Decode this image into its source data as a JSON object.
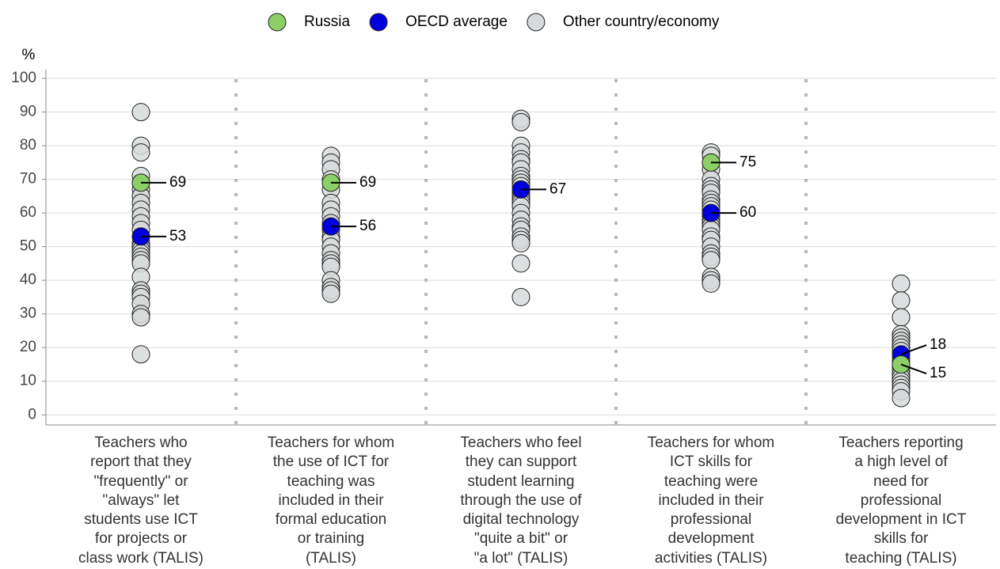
{
  "chart_data": {
    "type": "strip",
    "y_label": "%",
    "categories": [
      "Teachers who\nreport that they\n\"frequently\" or\n\"always\" let\nstudents use ICT\nfor projects or\nclass work (TALIS)",
      "Teachers for whom\nthe use of ICT for\nteaching was\nincluded in their\nformal education\nor training\n(TALIS)",
      "Teachers who feel\nthey can support\nstudent learning\nthrough the use of\ndigital technology\n\"quite a bit\" or\n\"a lot\" (TALIS)",
      "Teachers for whom\nICT skills for\nteaching were\nincluded in their\nprofessional\ndevelopment\nactivities (TALIS)",
      "Teachers reporting\na high level of\nneed for\nprofessional\ndevelopment in ICT\nskills for\nteaching (TALIS)"
    ],
    "series": [
      {
        "name": "Other country/economy",
        "color": "#d7dadc",
        "values": [
          [
            90,
            80,
            78,
            71,
            69,
            67,
            65,
            63,
            61,
            59,
            57,
            55,
            53,
            51,
            50,
            49,
            48,
            47,
            46,
            45,
            41,
            37,
            36,
            35,
            33,
            30,
            29,
            18
          ],
          [
            77,
            75,
            73,
            70,
            67,
            63,
            61,
            59,
            57,
            55,
            53,
            52,
            50,
            48,
            46,
            45,
            44,
            40,
            38,
            37,
            36
          ],
          [
            88,
            87,
            80,
            78,
            76,
            75,
            73,
            71,
            70,
            69,
            68,
            66,
            65,
            64,
            63,
            62,
            60,
            58,
            56,
            55,
            53,
            52,
            51,
            45,
            35
          ],
          [
            78,
            77,
            75,
            73,
            70,
            68,
            67,
            66,
            64,
            63,
            62,
            61,
            59,
            58,
            57,
            56,
            55,
            53,
            52,
            50,
            48,
            47,
            46,
            41,
            40,
            39
          ],
          [
            39,
            34,
            29,
            24,
            23,
            22,
            21,
            20,
            19,
            17,
            16,
            15,
            14,
            13,
            12,
            11,
            10,
            9,
            8,
            7,
            5
          ]
        ]
      },
      {
        "name": "OECD average",
        "color": "#0000dd",
        "values": [
          53,
          56,
          67,
          60,
          18
        ],
        "labeled": true
      },
      {
        "name": "Russia",
        "color": "#8ccf66",
        "values": [
          69,
          69,
          null,
          75,
          15
        ],
        "labeled": true
      }
    ],
    "legend_order": [
      2,
      1,
      0
    ],
    "ylim": [
      -3,
      102.6
    ],
    "yticks": [
      0,
      10,
      20,
      30,
      40,
      50,
      60,
      70,
      80,
      90,
      100
    ],
    "grid": true
  }
}
